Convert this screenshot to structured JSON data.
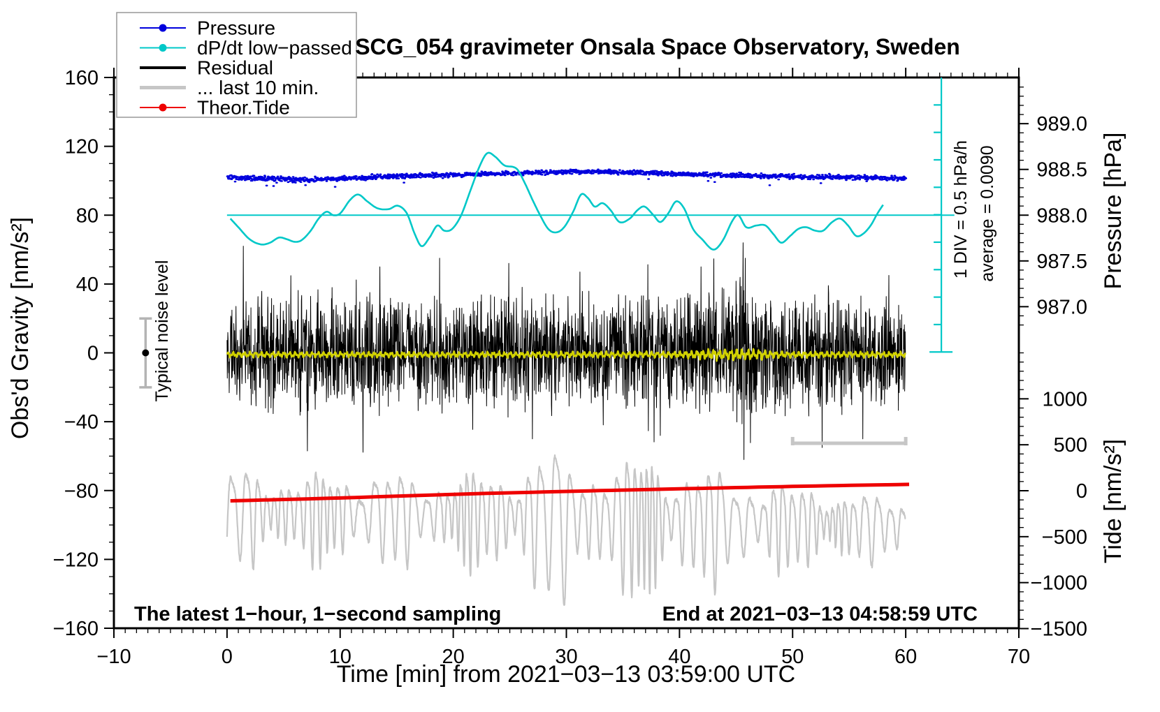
{
  "title": "SCG_054 gravimeter Onsala Space Observatory, Sweden",
  "legend": {
    "items": [
      {
        "label": "Pressure",
        "color": "#0000dd",
        "marker": "line-dot",
        "width": 2
      },
      {
        "label": "dP/dt low−passed",
        "color": "#00c8c8",
        "marker": "line-dot",
        "width": 2
      },
      {
        "label": "Residual",
        "color": "#000000",
        "marker": "line",
        "width": 4
      },
      {
        "label": "... last 10 min.",
        "color": "#c6c6c6",
        "marker": "line",
        "width": 5
      },
      {
        "label": "Theor.Tide",
        "color": "#ee0000",
        "marker": "line-dot",
        "width": 2
      }
    ]
  },
  "annotations": {
    "sampling_note": "The latest 1−hour, 1−second sampling",
    "end_note": "End at 2021−03−13 04:58:59 UTC",
    "noise_label": "Typical noise level",
    "div_label": "1 DIV = 0.5 hPa/h",
    "average_label": "average = 0.0090"
  },
  "chart_data": {
    "type": "line",
    "title": "SCG_054 gravimeter Onsala Space Observatory, Sweden",
    "axes": {
      "x": {
        "label": "Time [min] from 2021−03−13 03:59:00 UTC",
        "range": [
          -10,
          70
        ],
        "major_step": 10,
        "minor_step": 1,
        "tick_values": [
          -10,
          0,
          10,
          20,
          30,
          40,
          50,
          60,
          70
        ],
        "tick_labels": [
          "−10",
          "0",
          "10",
          "20",
          "30",
          "40",
          "50",
          "60",
          "70"
        ]
      },
      "y_gravity": {
        "label": "Obs'd Gravity [nm/s²]",
        "range": [
          -160,
          160
        ],
        "major_step": 40,
        "minor_step": 10,
        "tick_values": [
          160,
          120,
          80,
          40,
          0,
          -40,
          -80,
          -120,
          -160
        ],
        "tick_labels": [
          "160",
          "120",
          "80",
          "40",
          "0",
          "−40",
          "−80",
          "−120",
          "−160"
        ]
      },
      "y_pressure": {
        "label": "Pressure [hPa]",
        "tick_values": [
          989.0,
          988.5,
          988.0,
          987.5,
          987.0
        ],
        "tick_labels": [
          "989.0",
          "988.5",
          "988.0",
          "987.5",
          "987.0"
        ],
        "minor_step": 0.1,
        "minor_range": [
          986.8,
          989.4
        ],
        "anchor_hpa": 988.0,
        "anchor_gravity": 80,
        "gravity_per_hpa": 53.17
      },
      "y_tide": {
        "label": "Tide [nm/s²]",
        "tick_values": [
          1000,
          500,
          0,
          -500,
          -1000,
          -1500
        ],
        "tick_labels": [
          "1000",
          "500",
          "0",
          "−500",
          "−1000",
          "−1500"
        ],
        "minor_step": 100,
        "minor_range": [
          -1500,
          1500
        ],
        "anchor_tide": 0,
        "anchor_gravity": -80.1,
        "gravity_per_unit": 0.0534
      }
    },
    "series": [
      {
        "name": "... last 10 min.",
        "color": "#c6c6c6",
        "style": "quasiperiodic",
        "axis": "gravity",
        "width": 2.2,
        "seed": 3,
        "period": 1.0,
        "t_range": [
          0,
          60
        ],
        "center": [
          [
            0,
            -92
          ],
          [
            20,
            -93
          ],
          [
            30,
            -95
          ],
          [
            40,
            -96
          ],
          [
            50,
            -98
          ],
          [
            60,
            -100
          ]
        ],
        "envelope": [
          [
            0,
            30
          ],
          [
            2,
            32
          ],
          [
            4,
            28
          ],
          [
            6,
            25
          ],
          [
            8,
            28
          ],
          [
            10,
            30
          ],
          [
            12,
            28
          ],
          [
            14,
            30
          ],
          [
            16,
            28
          ],
          [
            18,
            25
          ],
          [
            20,
            28
          ],
          [
            22,
            30
          ],
          [
            24,
            30
          ],
          [
            26,
            35
          ],
          [
            27,
            45
          ],
          [
            28,
            50
          ],
          [
            29,
            48
          ],
          [
            30,
            45
          ],
          [
            31,
            40
          ],
          [
            32,
            38
          ],
          [
            33,
            42
          ],
          [
            34,
            40
          ],
          [
            35,
            38
          ],
          [
            36,
            45
          ],
          [
            37,
            48
          ],
          [
            38,
            45
          ],
          [
            39,
            40
          ],
          [
            40,
            38
          ],
          [
            41,
            35
          ],
          [
            42,
            38
          ],
          [
            43,
            35
          ],
          [
            44,
            35
          ],
          [
            45,
            32
          ],
          [
            46,
            30
          ],
          [
            47,
            28
          ],
          [
            48,
            30
          ],
          [
            49,
            28
          ],
          [
            50,
            25
          ],
          [
            51,
            25
          ],
          [
            52,
            28
          ],
          [
            53,
            25
          ],
          [
            54,
            22
          ],
          [
            55,
            25
          ],
          [
            56,
            22
          ],
          [
            57,
            20
          ],
          [
            58,
            22
          ],
          [
            59,
            20
          ],
          [
            60,
            18
          ]
        ]
      },
      {
        "name": "Theor.Tide",
        "color": "#ee0000",
        "style": "smooth",
        "axis": "gravity",
        "width": 5,
        "keypoints": [
          [
            0.3,
            -86
          ],
          [
            10,
            -84.3
          ],
          [
            20,
            -82.2
          ],
          [
            30,
            -80.5
          ],
          [
            40,
            -79
          ],
          [
            50,
            -77.6
          ],
          [
            60.3,
            -76.4
          ]
        ]
      },
      {
        "name": "Residual",
        "color": "#000000",
        "style": "noise",
        "axis": "gravity",
        "width": 1,
        "seed": 7,
        "t_range": [
          0,
          60
        ],
        "envelope": [
          [
            0,
            18
          ],
          [
            0.5,
            26
          ],
          [
            2,
            30
          ],
          [
            5,
            31
          ],
          [
            8,
            32
          ],
          [
            12,
            30
          ],
          [
            16,
            30
          ],
          [
            20,
            29
          ],
          [
            24,
            30
          ],
          [
            28,
            29
          ],
          [
            32,
            29
          ],
          [
            36,
            30
          ],
          [
            40,
            29
          ],
          [
            44,
            32
          ],
          [
            45.7,
            36
          ],
          [
            47,
            31
          ],
          [
            50,
            29
          ],
          [
            54,
            29
          ],
          [
            58,
            29
          ],
          [
            60,
            27
          ]
        ],
        "spikes": [
          [
            1.45,
            62
          ],
          [
            7.1,
            -57
          ],
          [
            13.5,
            50
          ],
          [
            18.8,
            55
          ],
          [
            24.9,
            52
          ],
          [
            27.0,
            -50
          ],
          [
            31.2,
            47
          ],
          [
            38.3,
            -48
          ],
          [
            41.9,
            50
          ],
          [
            45.62,
            64
          ],
          [
            45.7,
            -62
          ],
          [
            45.82,
            55
          ],
          [
            52.6,
            -55
          ],
          [
            56.2,
            -50
          ],
          [
            58.5,
            45
          ]
        ]
      },
      {
        "name": "Residual low−passed",
        "color": "#d2d200",
        "style": "wiggle",
        "axis": "gravity",
        "width": 2.5,
        "seed": 5,
        "t_range": [
          0,
          60
        ],
        "base": 0,
        "amplitude": [
          [
            0,
            2
          ],
          [
            20,
            2
          ],
          [
            40,
            2.2
          ],
          [
            42,
            3.5
          ],
          [
            44,
            4
          ],
          [
            47,
            3.5
          ],
          [
            49,
            2.2
          ],
          [
            60,
            2
          ]
        ]
      },
      {
        "name": "Pressure",
        "color": "#0000dd",
        "style": "dots",
        "axis": "pressure",
        "seed": 11,
        "t_range": [
          0,
          60
        ],
        "noise_sd": 0.013,
        "outlier_rate": 0.008,
        "keypoints": [
          [
            0,
            988.415
          ],
          [
            3,
            988.4
          ],
          [
            6,
            988.39
          ],
          [
            9,
            988.395
          ],
          [
            12,
            988.41
          ],
          [
            15,
            988.425
          ],
          [
            18,
            988.435
          ],
          [
            21,
            988.445
          ],
          [
            24,
            988.455
          ],
          [
            27,
            988.465
          ],
          [
            30,
            988.475
          ],
          [
            33,
            988.475
          ],
          [
            36,
            988.465
          ],
          [
            39,
            988.455
          ],
          [
            42,
            988.445
          ],
          [
            45,
            988.435
          ],
          [
            48,
            988.425
          ],
          [
            51,
            988.42
          ],
          [
            54,
            988.415
          ],
          [
            57,
            988.41
          ],
          [
            60,
            988.4
          ]
        ]
      },
      {
        "name": "dP/dt low−passed",
        "color": "#00c8c8",
        "style": "smooth",
        "axis": "gravity",
        "width": 2.6,
        "keypoints": [
          [
            0.3,
            78
          ],
          [
            1,
            73
          ],
          [
            2,
            66
          ],
          [
            3,
            63
          ],
          [
            3.8,
            64
          ],
          [
            4.6,
            67
          ],
          [
            5.3,
            66
          ],
          [
            6,
            64.5
          ],
          [
            6.6,
            65.5
          ],
          [
            7.4,
            71
          ],
          [
            8.1,
            78
          ],
          [
            8.8,
            82
          ],
          [
            9.4,
            80
          ],
          [
            10,
            81
          ],
          [
            10.9,
            89
          ],
          [
            11.6,
            92
          ],
          [
            12.4,
            88
          ],
          [
            13.3,
            84
          ],
          [
            14.3,
            83.5
          ],
          [
            15.1,
            85.5
          ],
          [
            15.9,
            81
          ],
          [
            16.6,
            69
          ],
          [
            17.2,
            62
          ],
          [
            17.9,
            67
          ],
          [
            18.6,
            74
          ],
          [
            19.2,
            71
          ],
          [
            19.9,
            72
          ],
          [
            20.7,
            80
          ],
          [
            21.5,
            94
          ],
          [
            22.3,
            108
          ],
          [
            23,
            116
          ],
          [
            23.7,
            114
          ],
          [
            24.5,
            109
          ],
          [
            25.6,
            107
          ],
          [
            26.3,
            99
          ],
          [
            27,
            89
          ],
          [
            27.6,
            81
          ],
          [
            28.4,
            72
          ],
          [
            29.1,
            70
          ],
          [
            29.8,
            73
          ],
          [
            30.6,
            82
          ],
          [
            31.3,
            92
          ],
          [
            31.9,
            90
          ],
          [
            32.5,
            85
          ],
          [
            33.2,
            87
          ],
          [
            33.9,
            83
          ],
          [
            34.7,
            76
          ],
          [
            35.6,
            78
          ],
          [
            36.3,
            83
          ],
          [
            36.9,
            85
          ],
          [
            37.7,
            80
          ],
          [
            38.3,
            76
          ],
          [
            39,
            81
          ],
          [
            39.7,
            88
          ],
          [
            40.4,
            84
          ],
          [
            41.2,
            72
          ],
          [
            42,
            66
          ],
          [
            43,
            60
          ],
          [
            43.8,
            65
          ],
          [
            44.7,
            77
          ],
          [
            45.2,
            80
          ],
          [
            45.9,
            73
          ],
          [
            46.8,
            74
          ],
          [
            47.6,
            74
          ],
          [
            48.3,
            69
          ],
          [
            49,
            64
          ],
          [
            49.8,
            68
          ],
          [
            50.5,
            72
          ],
          [
            51.2,
            73
          ],
          [
            52,
            71
          ],
          [
            52.7,
            71
          ],
          [
            53.5,
            76
          ],
          [
            54.2,
            78
          ],
          [
            54.9,
            74
          ],
          [
            55.6,
            68
          ],
          [
            56.2,
            69
          ],
          [
            56.9,
            74
          ],
          [
            57.5,
            81
          ],
          [
            58,
            86
          ]
        ]
      }
    ],
    "markers": {
      "noise_bar": {
        "t": -7.2,
        "gravity": 0,
        "half_range": 20,
        "bar_color": "#b4b4b4",
        "dot_color": "#000000"
      },
      "last10_bracket": {
        "t_from": 50,
        "t_to": 60,
        "gravity": -52.5,
        "color": "#c6c6c6"
      },
      "dpdt_scale": {
        "t": 63.15,
        "gravity_top": 160,
        "gravity_bottom": 0.5,
        "divisions": 10,
        "color": "#00c8c8"
      },
      "dpdt_zero_line": {
        "gravity": 80,
        "t_from": 0,
        "t_to": 64.3,
        "color": "#00c8c8"
      }
    }
  }
}
